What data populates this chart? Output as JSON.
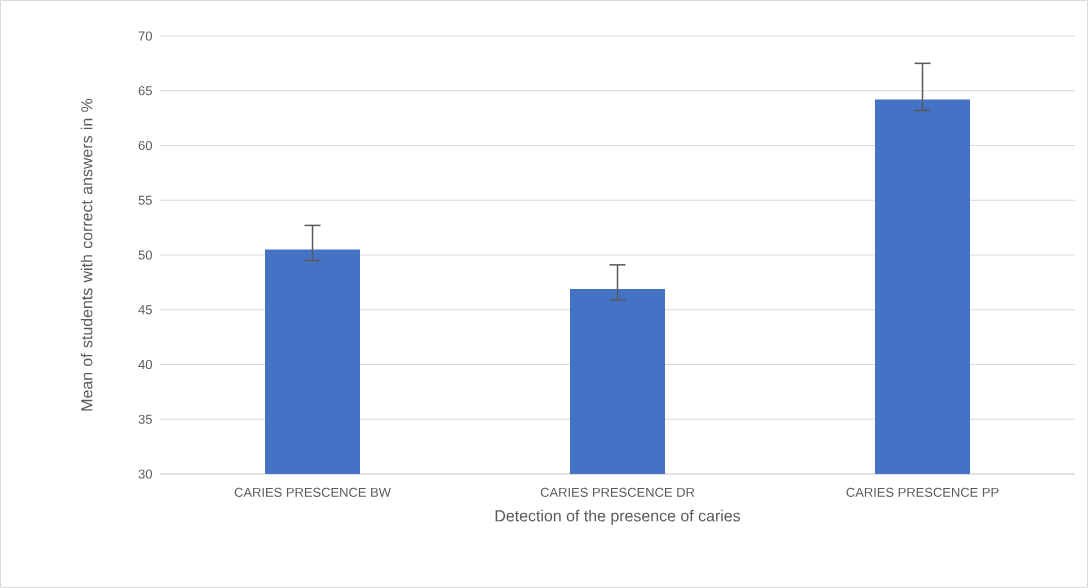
{
  "chart_data": {
    "type": "bar",
    "xlabel": "Detection of the presence of caries",
    "ylabel": "Mean of students with correct answers in %",
    "categories": [
      "CARIES PRESCENCE BW",
      "CARIES PRESCENCE DR",
      "CARIES PRESCENCE PP"
    ],
    "values": [
      50.5,
      46.9,
      64.2
    ],
    "color": "#4472c4",
    "errors": [
      [
        49.5,
        52.7
      ],
      [
        45.9,
        49.1
      ],
      [
        63.2,
        67.5
      ]
    ],
    "ylim": [
      30,
      70
    ],
    "yticks": [
      30,
      35,
      40,
      45,
      50,
      55,
      60,
      65,
      70
    ],
    "grid": "y"
  }
}
